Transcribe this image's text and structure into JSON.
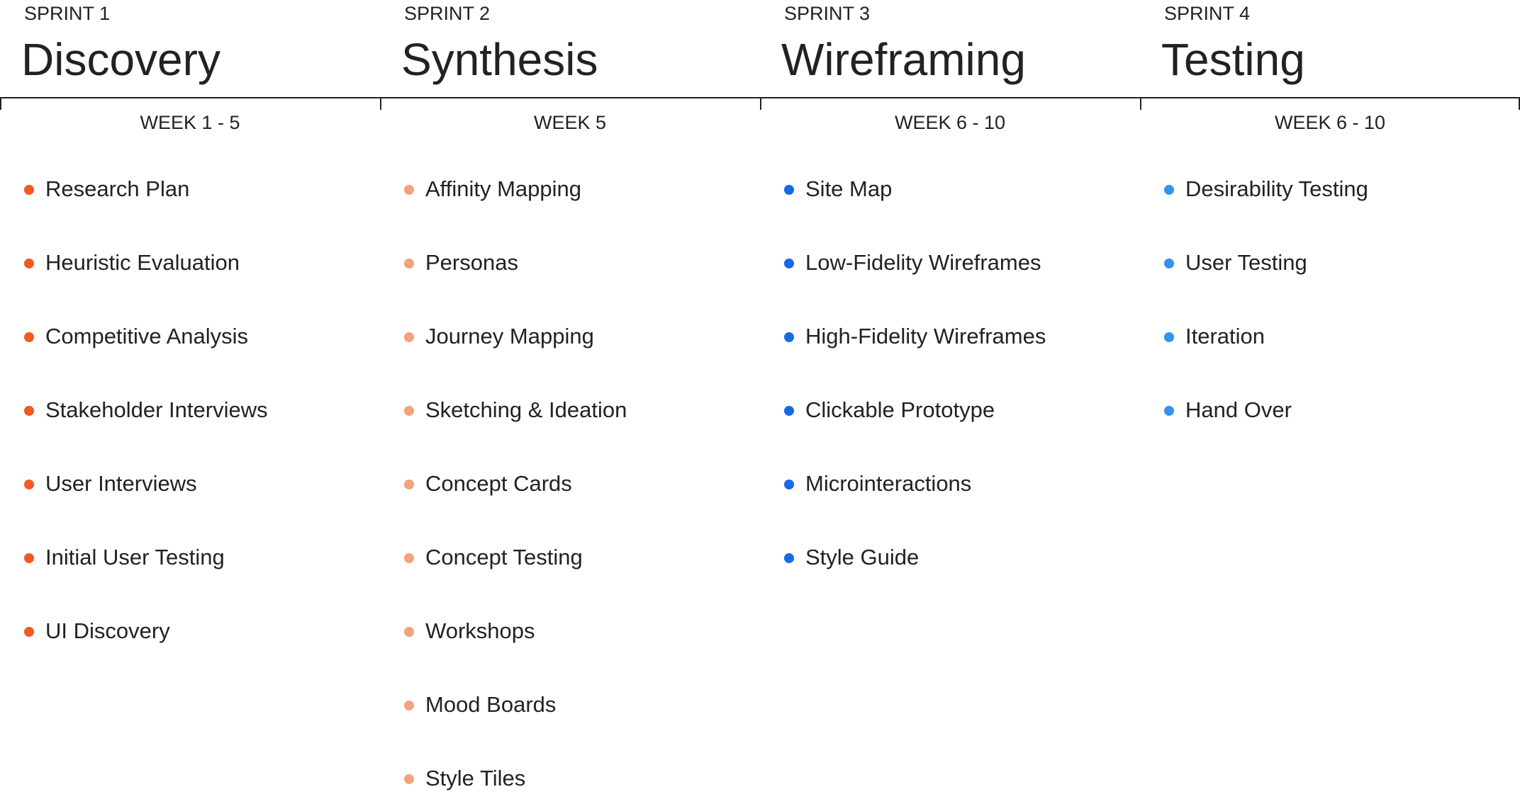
{
  "sprints": [
    {
      "label": "SPRINT 1",
      "title": "Discovery",
      "weeks": "WEEK 1 - 5",
      "color": "#f15a22",
      "items": [
        "Research Plan",
        "Heuristic Evaluation",
        "Competitive Analysis",
        "Stakeholder Interviews",
        "User Interviews",
        "Initial User Testing",
        "UI Discovery"
      ]
    },
    {
      "label": "SPRINT 2",
      "title": "Synthesis",
      "weeks": "WEEK 5",
      "color": "#f4a17c",
      "items": [
        "Affinity Mapping",
        "Personas",
        "Journey Mapping",
        "Sketching & Ideation",
        "Concept Cards",
        "Concept Testing",
        "Workshops",
        "Mood Boards",
        "Style Tiles"
      ]
    },
    {
      "label": "SPRINT 3",
      "title": "Wireframing",
      "weeks": "WEEK 6 - 10",
      "color": "#1769e8",
      "items": [
        "Site Map",
        "Low-Fidelity Wireframes",
        "High-Fidelity Wireframes",
        "Clickable Prototype",
        "Microinteractions",
        "Style Guide"
      ]
    },
    {
      "label": "SPRINT 4",
      "title": "Testing",
      "weeks": "WEEK 6 - 10",
      "color": "#3394ea",
      "items": [
        "Desirability Testing",
        "User Testing",
        "Iteration",
        "Hand Over"
      ]
    }
  ]
}
